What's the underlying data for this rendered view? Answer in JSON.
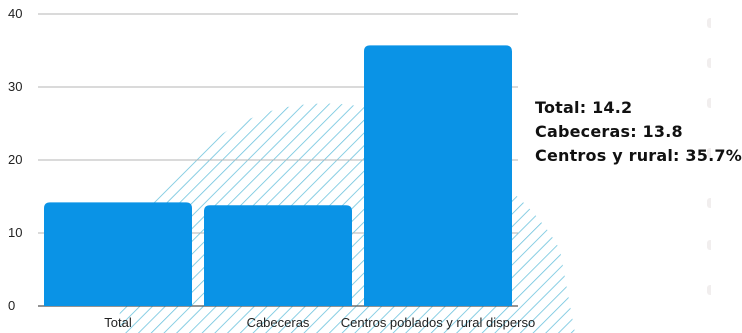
{
  "chart_data": {
    "type": "bar",
    "title": "",
    "xlabel": "",
    "ylabel": "",
    "categories": [
      "Total",
      "Cabeceras",
      "Centros poblados y rural disperso"
    ],
    "values": [
      14.2,
      13.8,
      35.7
    ],
    "ylim": [
      0,
      40
    ],
    "yticks": [
      0,
      10,
      20,
      30,
      40
    ],
    "grid": true,
    "legend": "none",
    "colors": {
      "bar": "#0a93e6",
      "grid": "#b5b5b5",
      "hatch": "#6cc3dd"
    }
  },
  "annotations": [
    "Total: 14.2",
    "Cabeceras: 13.8",
    "Centros y rural: 35.7%"
  ]
}
